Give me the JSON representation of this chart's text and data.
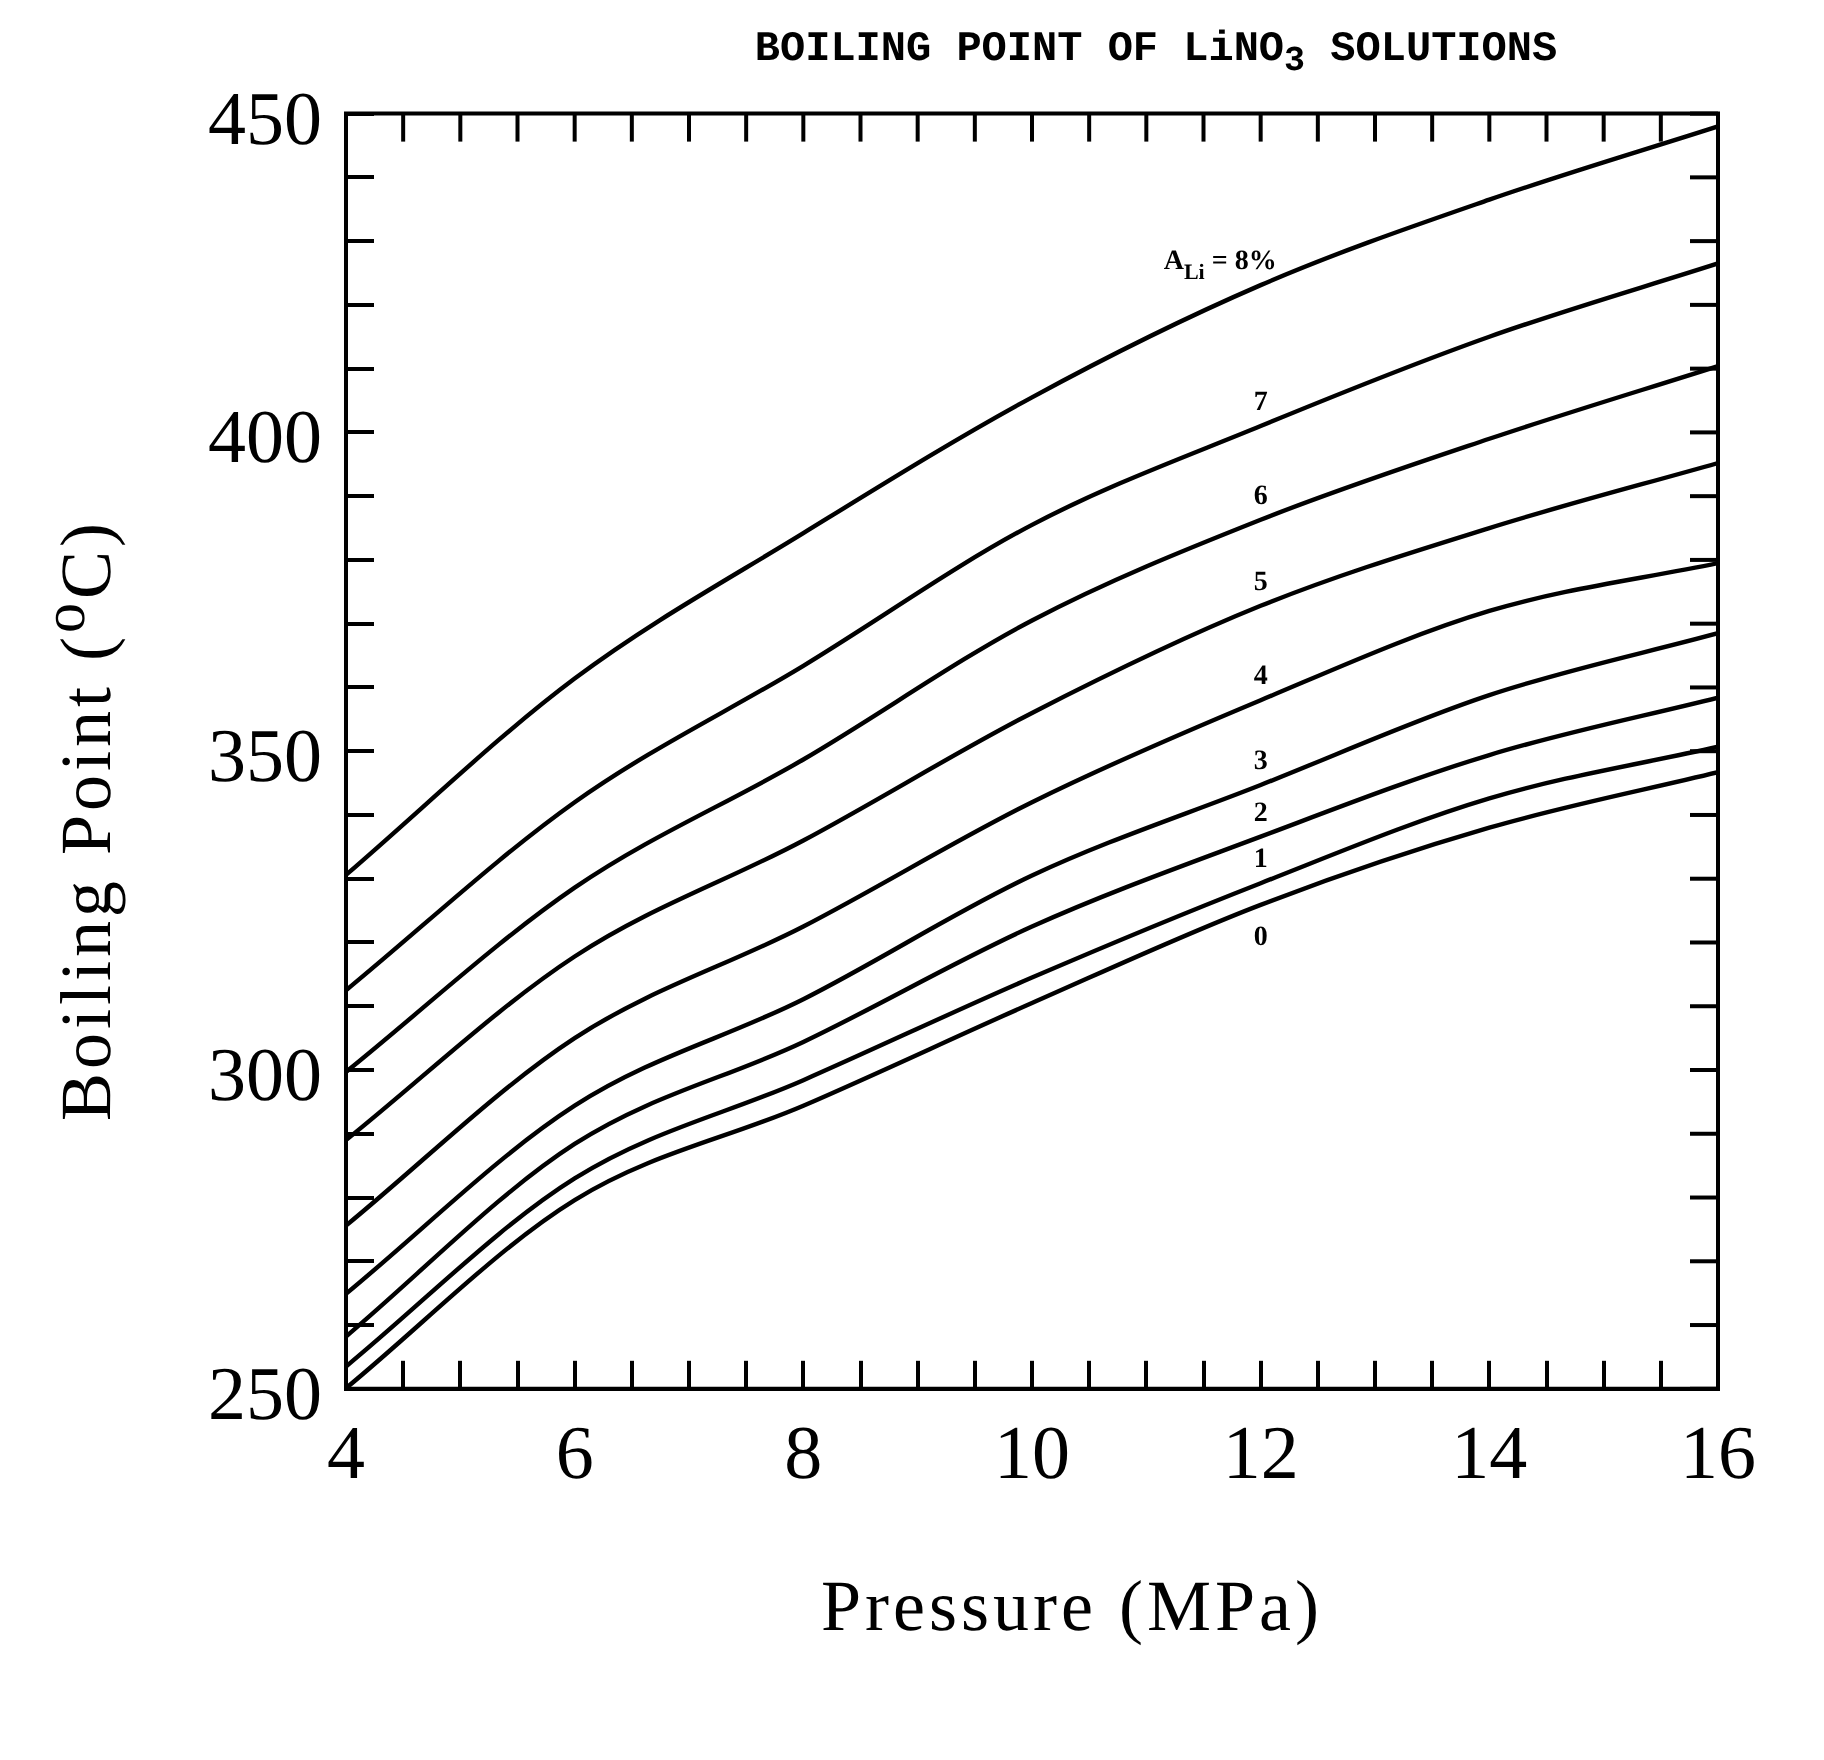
{
  "chart_data": {
    "type": "line",
    "title": "BOILING POINT OF LiNO$_{3}$ SOLUTIONS",
    "xlabel": "Pressure (MPa)",
    "ylabel": "Boiling Point ($^{o}$C)",
    "x": [
      4,
      6,
      8,
      10,
      12,
      14,
      16
    ],
    "series": [
      {
        "name": "A$_{Li}$ = 8%",
        "color": "#000000",
        "values": [
          330.6,
          361.4,
          384.2,
          405.5,
          423.1,
          436.5,
          448
        ]
      },
      {
        "name": "7",
        "color": "#000000",
        "values": [
          312.5,
          342,
          363.4,
          385.5,
          401,
          415,
          426.5
        ]
      },
      {
        "name": "6",
        "color": "#000000",
        "values": [
          299.7,
          328.6,
          348.7,
          370.5,
          386.3,
          399,
          410.4
        ]
      },
      {
        "name": "5",
        "color": "#000000",
        "values": [
          289,
          317.8,
          336,
          356,
          372.8,
          385,
          395.2
        ]
      },
      {
        "name": "4",
        "color": "#000000",
        "values": [
          275.6,
          305,
          322.5,
          342,
          358,
          372,
          379.5
        ]
      },
      {
        "name": "3",
        "color": "#000000",
        "values": [
          264.9,
          294.4,
          311.1,
          330.5,
          344.7,
          358.8,
          368.5
        ]
      },
      {
        "name": "2",
        "color": "#000000",
        "values": [
          258.2,
          288.4,
          304.4,
          322.5,
          336.6,
          349.4,
          358.4
        ]
      },
      {
        "name": "1",
        "color": "#000000",
        "values": [
          253.5,
          283,
          298.4,
          314.5,
          329.3,
          342.6,
          350.7
        ]
      },
      {
        "name": "0",
        "color": "#000000",
        "values": [
          250.1,
          279.6,
          294.4,
          310.5,
          325.9,
          338,
          346.7
        ]
      }
    ],
    "xlim": [
      4,
      16
    ],
    "ylim": [
      250,
      450
    ],
    "xticks": [
      4,
      {
        "value": 4.5,
        "label": null
      },
      {
        "value": 5,
        "label": null
      },
      {
        "value": 5.5,
        "label": null
      },
      6,
      {
        "value": 6.5,
        "label": null
      },
      {
        "value": 7,
        "label": null
      },
      {
        "value": 7.5,
        "label": null
      },
      8,
      {
        "value": 8.5,
        "label": null
      },
      {
        "value": 9,
        "label": null
      },
      {
        "value": 9.5,
        "label": null
      },
      10,
      {
        "value": 10.5,
        "label": null
      },
      {
        "value": 11,
        "label": null
      },
      {
        "value": 11.5,
        "label": null
      },
      12,
      {
        "value": 12.5,
        "label": null
      },
      {
        "value": 13,
        "label": null
      },
      {
        "value": 13.5,
        "label": null
      },
      14,
      {
        "value": 14.5,
        "label": null
      },
      {
        "value": 15,
        "label": null
      },
      {
        "value": 15.5,
        "label": null
      },
      16
    ],
    "yticks": [
      250,
      {
        "value": 260,
        "label": null
      },
      {
        "value": 270,
        "label": null
      },
      {
        "value": 280,
        "label": null
      },
      {
        "value": 290,
        "label": null
      },
      300,
      {
        "value": 310,
        "label": null
      },
      {
        "value": 320,
        "label": null
      },
      {
        "value": 330,
        "label": null
      },
      {
        "value": 340,
        "label": null
      },
      350,
      {
        "value": 360,
        "label": null
      },
      {
        "value": 370,
        "label": null
      },
      {
        "value": 380,
        "label": null
      },
      {
        "value": 390,
        "label": null
      },
      400,
      {
        "value": 410,
        "label": null
      },
      {
        "value": 420,
        "label": null
      },
      {
        "value": 430,
        "label": null
      },
      {
        "value": 440,
        "label": null
      },
      450
    ],
    "grid": false,
    "legend": false,
    "marker": "none",
    "line_style": "solid"
  }
}
